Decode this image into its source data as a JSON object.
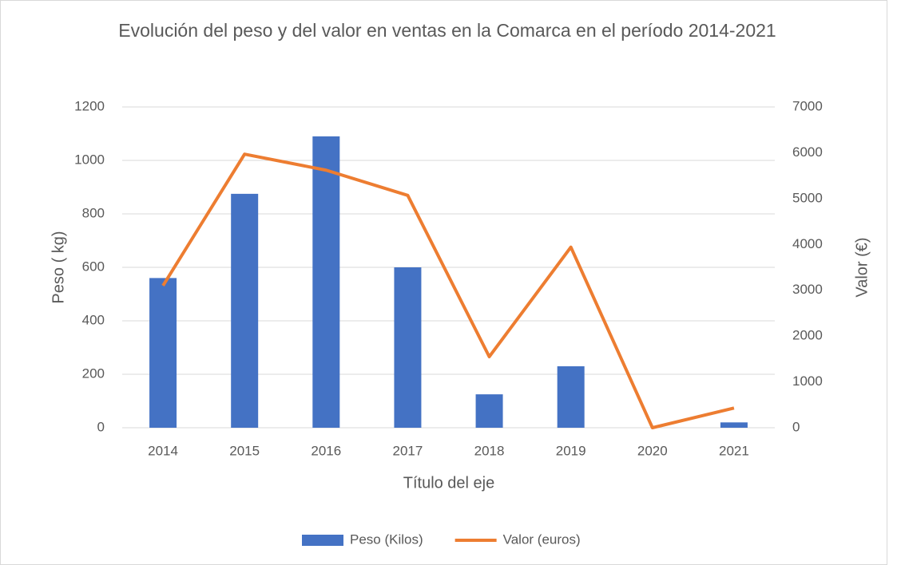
{
  "chart_data": {
    "type": "bar_line",
    "title": "Evolución del peso y del valor en ventas en la Comarca en el período 2014-2021",
    "x_label": "Título del eje",
    "y_label": "Peso ( kg)",
    "y2_label": "Valor (€)",
    "categories": [
      "2014",
      "2015",
      "2016",
      "2017",
      "2018",
      "2019",
      "2020",
      "2021"
    ],
    "series": [
      {
        "name": "Peso (Kilos)",
        "type": "bar",
        "color": "#4472c4",
        "values": [
          560,
          875,
          1090,
          600,
          125,
          230,
          0,
          20
        ]
      },
      {
        "name": "Valor (euros)",
        "type": "line",
        "axis": "y2",
        "color": "#ed7d31",
        "values": [
          3100,
          5970,
          5620,
          5070,
          1550,
          3940,
          0,
          430
        ]
      }
    ],
    "ylim": [
      0,
      1200
    ],
    "yticks": [
      0,
      200,
      400,
      600,
      800,
      1000,
      1200
    ],
    "y2lim": [
      0,
      7000
    ],
    "y2ticks": [
      0,
      1000,
      2000,
      3000,
      4000,
      5000,
      6000,
      7000
    ],
    "grid": true,
    "legend": "bottom"
  }
}
